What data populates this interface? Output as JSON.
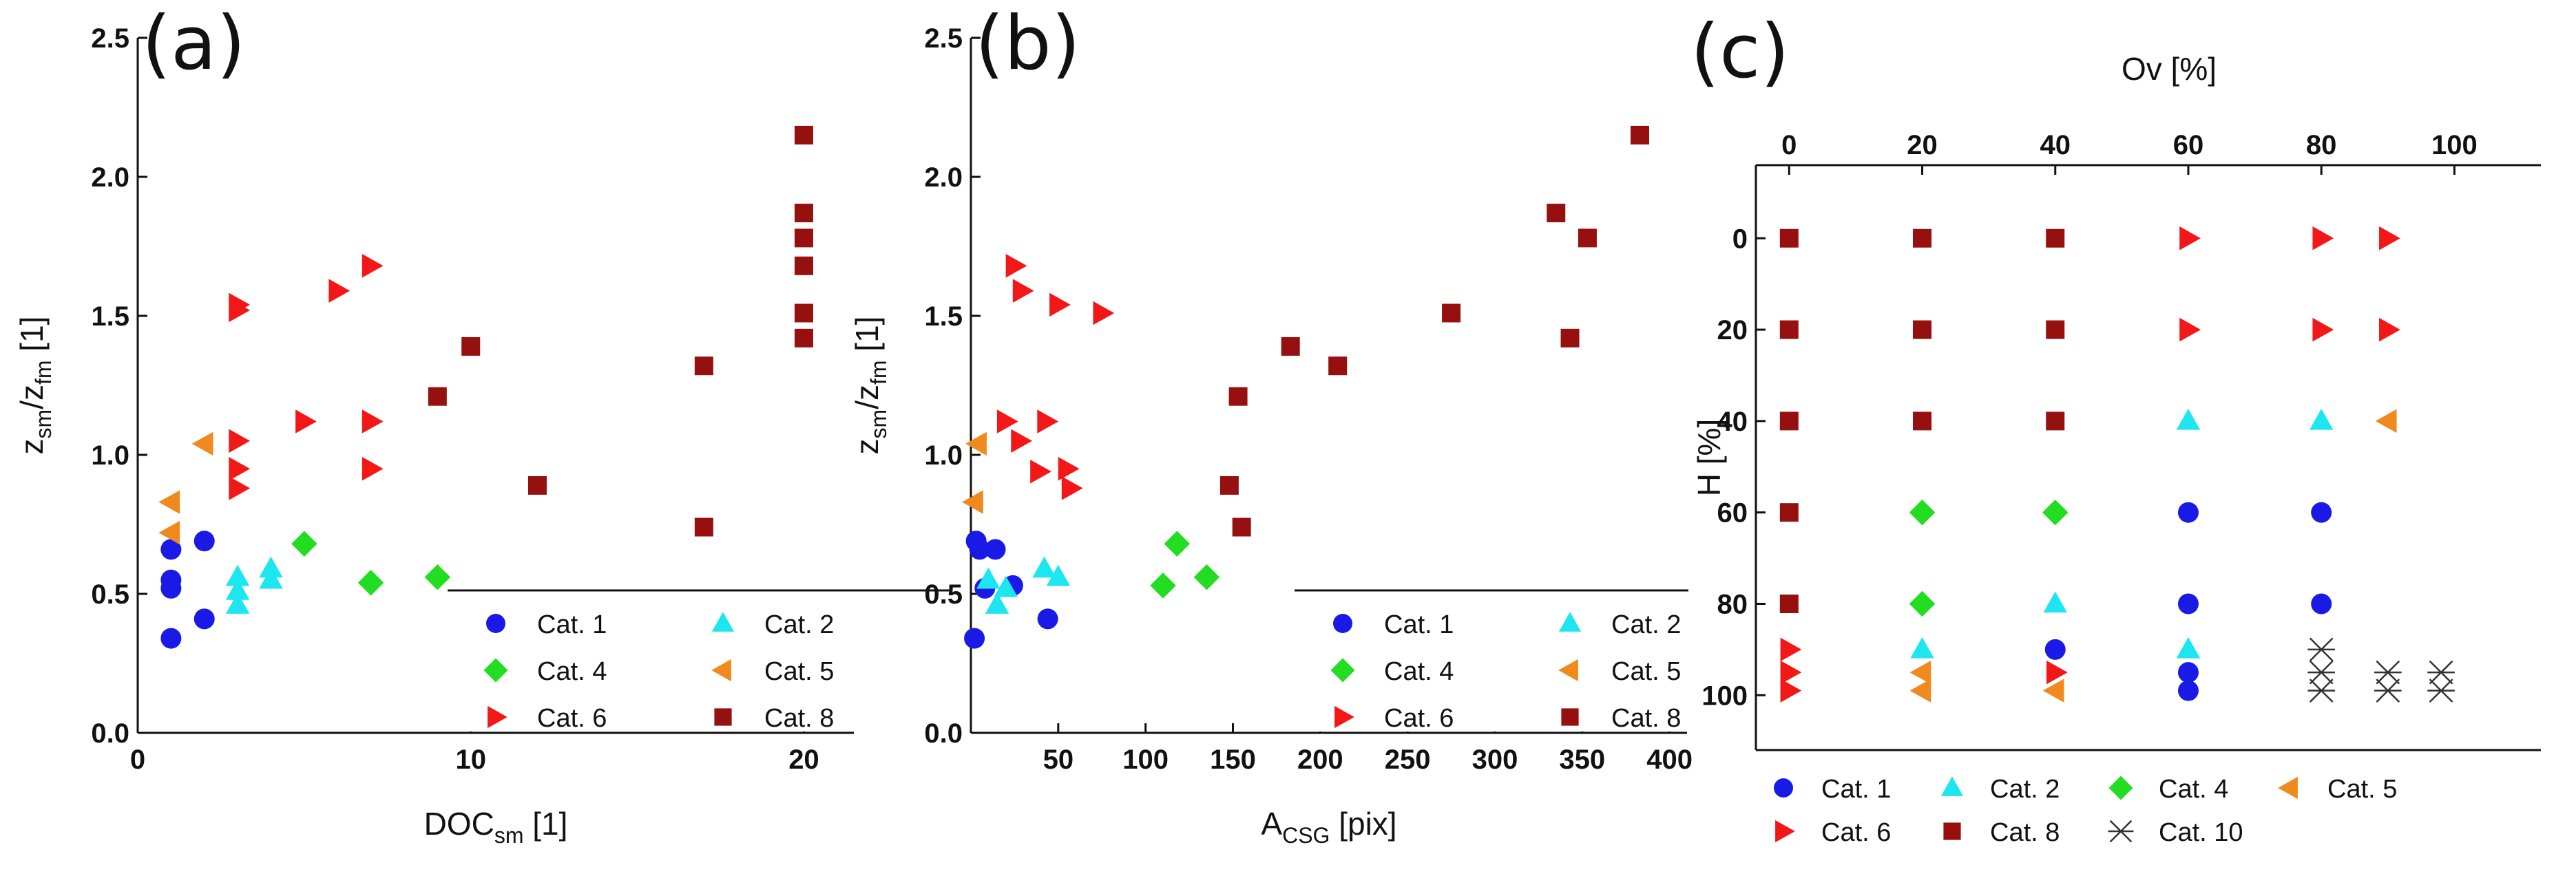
{
  "categories": {
    "cat1": {
      "label": "Cat. 1",
      "color": "#1a1ae6",
      "shape": "circle"
    },
    "cat2": {
      "label": "Cat. 2",
      "color": "#1ee6f0",
      "shape": "triangle-up"
    },
    "cat4": {
      "label": "Cat. 4",
      "color": "#22dd22",
      "shape": "diamond"
    },
    "cat5": {
      "label": "Cat. 5",
      "color": "#f08a1e",
      "shape": "triangle-left"
    },
    "cat6": {
      "label": "Cat. 6",
      "color": "#f21818",
      "shape": "triangle-right"
    },
    "cat8": {
      "label": "Cat. 8",
      "color": "#961010",
      "shape": "square"
    },
    "cat10": {
      "label": "Cat. 10",
      "color": "#333333",
      "shape": "asterisk"
    }
  },
  "chart_data": [
    {
      "panel": "(a)",
      "type": "scatter",
      "xlabel": "DOC",
      "xlabel_sub": "sm",
      "xlabel_tail": " [1]",
      "ylabel": "z",
      "ylabel_sub1": "sm",
      "ylabel_mid": "/z",
      "ylabel_sub2": "fm",
      "ylabel_tail": " [1]",
      "xlim": [
        0,
        21.5
      ],
      "ylim": [
        0,
        2.5
      ],
      "xticks": [
        0,
        10,
        20
      ],
      "xtick_labels": [
        "0",
        "10",
        "20"
      ],
      "yticks": [
        0.0,
        0.5,
        1.0,
        1.5,
        2.0,
        2.5
      ],
      "ytick_labels": [
        "0.0",
        "0.5",
        "1.0",
        "1.5",
        "2.0",
        "2.5"
      ],
      "legend": [
        "cat1",
        "cat2",
        "cat4",
        "cat5",
        "cat6",
        "cat8"
      ],
      "series": [
        {
          "cat": "cat1",
          "points": [
            [
              1,
              0.66
            ],
            [
              1,
              0.55
            ],
            [
              1,
              0.52
            ],
            [
              1,
              0.34
            ],
            [
              2,
              0.69
            ],
            [
              2,
              0.41
            ]
          ]
        },
        {
          "cat": "cat2",
          "points": [
            [
              3,
              0.56
            ],
            [
              3,
              0.51
            ],
            [
              3,
              0.46
            ],
            [
              4,
              0.55
            ],
            [
              4,
              0.59
            ]
          ]
        },
        {
          "cat": "cat4",
          "points": [
            [
              5,
              0.68
            ],
            [
              7,
              0.54
            ],
            [
              9,
              0.56
            ]
          ]
        },
        {
          "cat": "cat5",
          "points": [
            [
              1,
              0.83
            ],
            [
              1,
              0.72
            ],
            [
              2,
              1.04
            ]
          ]
        },
        {
          "cat": "cat6",
          "points": [
            [
              3,
              1.54
            ],
            [
              3,
              1.52
            ],
            [
              3,
              1.05
            ],
            [
              3,
              0.95
            ],
            [
              3,
              0.88
            ],
            [
              5,
              1.12
            ],
            [
              6,
              1.59
            ],
            [
              7,
              1.68
            ],
            [
              7,
              1.12
            ],
            [
              7,
              0.95
            ]
          ]
        },
        {
          "cat": "cat8",
          "points": [
            [
              9,
              1.21
            ],
            [
              10,
              1.39
            ],
            [
              12,
              0.89
            ],
            [
              17,
              1.32
            ],
            [
              17,
              0.74
            ],
            [
              20,
              2.15
            ],
            [
              20,
              1.87
            ],
            [
              20,
              1.78
            ],
            [
              20,
              1.68
            ],
            [
              20,
              1.51
            ],
            [
              20,
              1.42
            ]
          ]
        }
      ]
    },
    {
      "panel": "(b)",
      "type": "scatter",
      "xlabel": "A",
      "xlabel_sub": "CSG",
      "xlabel_tail": " [pix]",
      "ylabel": "z",
      "ylabel_sub1": "sm",
      "ylabel_mid": "/z",
      "ylabel_sub2": "fm",
      "ylabel_tail": " [1]",
      "xlim": [
        0,
        410
      ],
      "ylim": [
        0,
        2.5
      ],
      "xticks": [
        50,
        100,
        150,
        200,
        250,
        300,
        350,
        400
      ],
      "xtick_labels": [
        "50",
        "100",
        "150",
        "200",
        "250",
        "300",
        "350",
        "400"
      ],
      "yticks": [
        0.0,
        0.5,
        1.0,
        1.5,
        2.0,
        2.5
      ],
      "ytick_labels": [
        "0.0",
        "0.5",
        "1.0",
        "1.5",
        "2.0",
        "2.5"
      ],
      "legend": [
        "cat1",
        "cat2",
        "cat4",
        "cat5",
        "cat6",
        "cat8"
      ],
      "series": [
        {
          "cat": "cat1",
          "points": [
            [
              3,
              0.69
            ],
            [
              5,
              0.66
            ],
            [
              8,
              0.52
            ],
            [
              14,
              0.66
            ],
            [
              24,
              0.53
            ],
            [
              44,
              0.41
            ],
            [
              2,
              0.34
            ]
          ]
        },
        {
          "cat": "cat2",
          "points": [
            [
              10,
              0.55
            ],
            [
              15,
              0.46
            ],
            [
              20,
              0.52
            ],
            [
              42,
              0.59
            ],
            [
              50,
              0.56
            ]
          ]
        },
        {
          "cat": "cat4",
          "points": [
            [
              110,
              0.53
            ],
            [
              118,
              0.68
            ],
            [
              135,
              0.56
            ]
          ]
        },
        {
          "cat": "cat5",
          "points": [
            [
              2,
              0.83
            ],
            [
              4,
              1.04
            ]
          ]
        },
        {
          "cat": "cat6",
          "points": [
            [
              25,
              1.68
            ],
            [
              29,
              1.59
            ],
            [
              20,
              1.12
            ],
            [
              28,
              1.05
            ],
            [
              39,
              0.94
            ],
            [
              43,
              1.12
            ],
            [
              50,
              1.54
            ],
            [
              55,
              0.95
            ],
            [
              57,
              0.88
            ],
            [
              75,
              1.51
            ]
          ]
        },
        {
          "cat": "cat8",
          "points": [
            [
              148,
              0.89
            ],
            [
              153,
              1.21
            ],
            [
              155,
              0.74
            ],
            [
              183,
              1.39
            ],
            [
              210,
              1.32
            ],
            [
              275,
              1.51
            ],
            [
              335,
              1.87
            ],
            [
              343,
              1.42
            ],
            [
              353,
              1.78
            ],
            [
              383,
              2.15
            ]
          ]
        }
      ]
    },
    {
      "panel": "(c)",
      "type": "scatter",
      "xlabel": "Ov [%]",
      "ylabel": "H [%]",
      "xlim": [
        -5,
        113
      ],
      "ylim": [
        -16,
        112
      ],
      "xticks": [
        0,
        20,
        40,
        60,
        80,
        100
      ],
      "xtick_labels": [
        "0",
        "20",
        "40",
        "60",
        "80",
        "100"
      ],
      "yticks": [
        0,
        20,
        40,
        60,
        80,
        100
      ],
      "ytick_labels": [
        "0",
        "20",
        "40",
        "60",
        "80",
        "100"
      ],
      "legend": [
        "cat1",
        "cat2",
        "cat4",
        "cat5",
        "cat6",
        "cat8",
        "cat10"
      ],
      "series": [
        {
          "cat": "cat8",
          "points": [
            [
              0,
              0
            ],
            [
              20,
              0
            ],
            [
              40,
              0
            ],
            [
              0,
              20
            ],
            [
              20,
              20
            ],
            [
              40,
              20
            ],
            [
              0,
              40
            ],
            [
              20,
              40
            ],
            [
              40,
              40
            ],
            [
              0,
              60
            ],
            [
              0,
              80
            ]
          ]
        },
        {
          "cat": "cat6",
          "points": [
            [
              60,
              0
            ],
            [
              80,
              0
            ],
            [
              90,
              0
            ],
            [
              60,
              20
            ],
            [
              80,
              20
            ],
            [
              90,
              20
            ],
            [
              0,
              90
            ],
            [
              0,
              95
            ],
            [
              0,
              99
            ],
            [
              40,
              95
            ]
          ]
        },
        {
          "cat": "cat2",
          "points": [
            [
              60,
              40
            ],
            [
              80,
              40
            ],
            [
              40,
              80
            ],
            [
              20,
              90
            ],
            [
              60,
              90
            ]
          ]
        },
        {
          "cat": "cat5",
          "points": [
            [
              90,
              40
            ],
            [
              20,
              95
            ],
            [
              20,
              99
            ],
            [
              40,
              99
            ]
          ]
        },
        {
          "cat": "cat4",
          "points": [
            [
              20,
              60
            ],
            [
              40,
              60
            ],
            [
              20,
              80
            ]
          ]
        },
        {
          "cat": "cat1",
          "points": [
            [
              60,
              60
            ],
            [
              80,
              60
            ],
            [
              60,
              80
            ],
            [
              80,
              80
            ],
            [
              40,
              90
            ],
            [
              60,
              95
            ],
            [
              60,
              99
            ]
          ]
        },
        {
          "cat": "cat10",
          "points": [
            [
              80,
              90
            ],
            [
              80,
              95
            ],
            [
              80,
              99
            ],
            [
              90,
              95
            ],
            [
              90,
              99
            ],
            [
              98,
              95
            ],
            [
              98,
              99
            ]
          ]
        }
      ]
    }
  ]
}
